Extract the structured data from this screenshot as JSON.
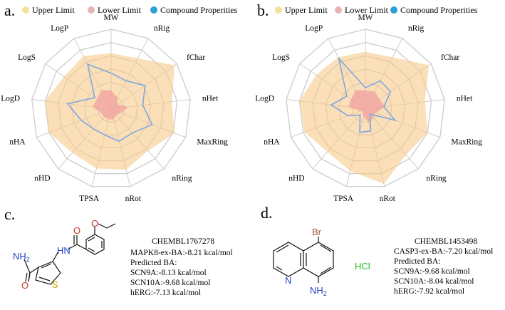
{
  "panels": {
    "a": {
      "letter": "a."
    },
    "b": {
      "letter": "b."
    },
    "c": {
      "letter": "c."
    },
    "d": {
      "letter": "d."
    }
  },
  "legend": [
    {
      "label": "Upper Limit",
      "color": "#f8dfa0"
    },
    {
      "label": "Lower Limit",
      "color": "#e8b3b3"
    },
    {
      "label": "Compound Properities",
      "color": "#2aa0d8"
    }
  ],
  "colors": {
    "upper_fill": "#f6c98a",
    "lower_fill": "#f2a0a0",
    "compound_line": "#7fa8e0",
    "grid": "#cccccc"
  },
  "chart_data": [
    {
      "type": "radar",
      "panel": "a",
      "axes": [
        "MW",
        "nRig",
        "fChar",
        "nHet",
        "MaxRing",
        "nRing",
        "nRot",
        "TPSA",
        "nHD",
        "nHA",
        "LogD",
        "LogS",
        "LogP"
      ],
      "rlim": [
        0,
        6
      ],
      "grid": true,
      "series": [
        {
          "name": "Upper Limit",
          "values": [
            4.2,
            4.3,
            5.8,
            4.6,
            5.1,
            4.2,
            4.7,
            4.6,
            4.4,
            5.0,
            5.0,
            4.3,
            4.5
          ]
        },
        {
          "name": "Lower Limit",
          "values": [
            1.4,
            1.0,
            0.6,
            1.3,
            0.8,
            0.6,
            0.8,
            0.8,
            0.8,
            0.8,
            1.4,
            1.3,
            1.6
          ]
        },
        {
          "name": "Compound Properities",
          "values": [
            2.7,
            2.4,
            3.1,
            2.4,
            3.3,
            2.4,
            2.5,
            2.0,
            2.0,
            2.4,
            3.3,
            1.5,
            3.8
          ]
        }
      ]
    },
    {
      "type": "radar",
      "panel": "b",
      "axes": [
        "MW",
        "nRig",
        "fChar",
        "nHet",
        "MaxRing",
        "nRing",
        "nRot",
        "TPSA",
        "nHD",
        "nHA",
        "LogD",
        "LogS",
        "LogP"
      ],
      "rlim": [
        0,
        6
      ],
      "grid": true,
      "series": [
        {
          "name": "Upper Limit",
          "values": [
            4.3,
            4.4,
            5.8,
            4.5,
            5.0,
            4.6,
            5.8,
            4.8,
            4.3,
            4.9,
            5.0,
            4.5,
            4.4
          ]
        },
        {
          "name": "Lower Limit",
          "values": [
            1.4,
            1.5,
            1.3,
            1.5,
            0.8,
            0.9,
            1.0,
            0.6,
            0.3,
            0.4,
            1.3,
            1.3,
            1.6
          ]
        },
        {
          "name": "Compound Properities",
          "values": [
            1.6,
            2.4,
            2.3,
            1.4,
            2.4,
            0.5,
            1.7,
            1.8,
            0.6,
            1.4,
            2.6,
            1.7,
            4.3
          ]
        }
      ]
    }
  ],
  "compound_c": {
    "id": "CHEMBL1767278",
    "lines": [
      "MAPK8-ex-BA:-8.21 kcal/mol",
      "Predicted BA:",
      "SCN9A:-8.13 kcal/mol",
      "SCN10A:-9.68 kcal/mol",
      "hERG:-7.13 kcal/mol"
    ],
    "atoms": {
      "o_carbonyl": "O",
      "nh": "HN",
      "o_ether": "O",
      "nh2": "NH",
      "nh2_sub": "2",
      "o_amide": "O",
      "s": "S"
    }
  },
  "compound_d": {
    "id": "CHEMBL1453498",
    "lines": [
      "CASP3-ex-BA:-7.20 kcal/mol",
      "Predicted BA:",
      "SCN9A:-9.68 kcal/mol",
      "SCN10A:-8.04 kcal/mol",
      "hERG:-7.92 kcal/mol"
    ],
    "salt": "HCl",
    "atoms": {
      "br": "Br",
      "n": "N",
      "nh2": "NH",
      "nh2_sub": "2"
    }
  }
}
